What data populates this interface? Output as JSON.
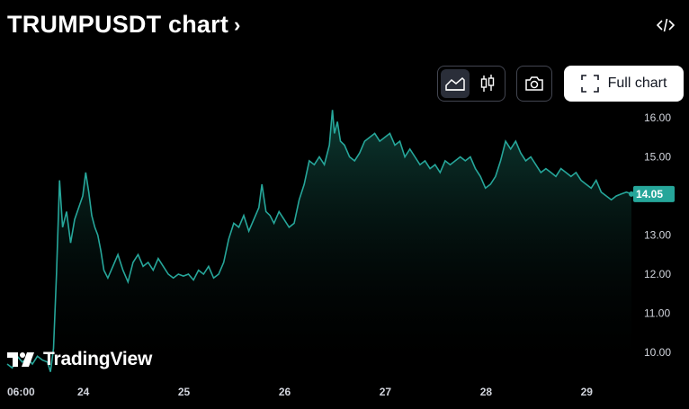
{
  "header": {
    "title": "TRUMPUSDT chart",
    "full_chart_label": "Full chart"
  },
  "icons": {
    "embed": "code-icon",
    "area": "area-chart-icon",
    "candles": "candlestick-icon",
    "snapshot": "camera-icon",
    "fullscreen": "fullscreen-icon"
  },
  "brand": {
    "name": "TradingView"
  },
  "colors": {
    "line": "#26a69a",
    "fill_top": "#0d3b33",
    "label_bg": "#26a69a",
    "background": "#000000"
  },
  "chart_data": {
    "type": "area",
    "title": "TRUMPUSDT chart",
    "xlabel": "",
    "ylabel": "",
    "x_ticks": [
      "06:00",
      "24",
      "25",
      "26",
      "27",
      "28",
      "29"
    ],
    "y_ticks": [
      "10.00",
      "11.00",
      "12.00",
      "13.00",
      "14.00",
      "15.00",
      "16.00"
    ],
    "ylim": [
      9.4,
      16.3
    ],
    "last_value": "14.05",
    "x_range_days": [
      23.25,
      29.45
    ],
    "series": [
      {
        "points": [
          [
            23.25,
            9.7
          ],
          [
            23.3,
            9.6
          ],
          [
            23.35,
            9.9
          ],
          [
            23.4,
            9.75
          ],
          [
            23.45,
            9.85
          ],
          [
            23.5,
            9.7
          ],
          [
            23.55,
            9.9
          ],
          [
            23.6,
            9.8
          ],
          [
            23.65,
            9.75
          ],
          [
            23.68,
            9.5
          ],
          [
            23.71,
            10.1
          ],
          [
            23.74,
            12.0
          ],
          [
            23.77,
            14.4
          ],
          [
            23.8,
            13.2
          ],
          [
            23.84,
            13.6
          ],
          [
            23.88,
            12.8
          ],
          [
            23.92,
            13.4
          ],
          [
            23.96,
            13.7
          ],
          [
            24.0,
            14.0
          ],
          [
            24.03,
            14.6
          ],
          [
            24.06,
            14.1
          ],
          [
            24.09,
            13.5
          ],
          [
            24.12,
            13.2
          ],
          [
            24.15,
            13.0
          ],
          [
            24.18,
            12.6
          ],
          [
            24.21,
            12.1
          ],
          [
            24.25,
            11.9
          ],
          [
            24.3,
            12.2
          ],
          [
            24.35,
            12.5
          ],
          [
            24.4,
            12.1
          ],
          [
            24.45,
            11.8
          ],
          [
            24.5,
            12.3
          ],
          [
            24.55,
            12.5
          ],
          [
            24.6,
            12.2
          ],
          [
            24.65,
            12.3
          ],
          [
            24.7,
            12.1
          ],
          [
            24.75,
            12.4
          ],
          [
            24.8,
            12.2
          ],
          [
            24.85,
            12.0
          ],
          [
            24.9,
            11.9
          ],
          [
            24.95,
            12.0
          ],
          [
            25.0,
            11.95
          ],
          [
            25.05,
            12.0
          ],
          [
            25.1,
            11.85
          ],
          [
            25.15,
            12.1
          ],
          [
            25.2,
            12.0
          ],
          [
            25.25,
            12.2
          ],
          [
            25.3,
            11.9
          ],
          [
            25.35,
            12.0
          ],
          [
            25.4,
            12.3
          ],
          [
            25.45,
            12.9
          ],
          [
            25.5,
            13.3
          ],
          [
            25.55,
            13.2
          ],
          [
            25.6,
            13.5
          ],
          [
            25.65,
            13.1
          ],
          [
            25.7,
            13.4
          ],
          [
            25.75,
            13.7
          ],
          [
            25.78,
            14.3
          ],
          [
            25.82,
            13.6
          ],
          [
            25.86,
            13.5
          ],
          [
            25.9,
            13.3
          ],
          [
            25.95,
            13.6
          ],
          [
            26.0,
            13.4
          ],
          [
            26.05,
            13.2
          ],
          [
            26.1,
            13.3
          ],
          [
            26.15,
            13.9
          ],
          [
            26.2,
            14.3
          ],
          [
            26.25,
            14.9
          ],
          [
            26.3,
            14.8
          ],
          [
            26.35,
            15.0
          ],
          [
            26.4,
            14.8
          ],
          [
            26.45,
            15.3
          ],
          [
            26.48,
            16.2
          ],
          [
            26.5,
            15.6
          ],
          [
            26.53,
            15.9
          ],
          [
            26.56,
            15.4
          ],
          [
            26.6,
            15.3
          ],
          [
            26.65,
            15.0
          ],
          [
            26.7,
            14.9
          ],
          [
            26.75,
            15.1
          ],
          [
            26.8,
            15.4
          ],
          [
            26.85,
            15.5
          ],
          [
            26.9,
            15.6
          ],
          [
            26.95,
            15.4
          ],
          [
            27.0,
            15.5
          ],
          [
            27.05,
            15.6
          ],
          [
            27.1,
            15.3
          ],
          [
            27.15,
            15.4
          ],
          [
            27.2,
            15.0
          ],
          [
            27.25,
            15.2
          ],
          [
            27.3,
            15.0
          ],
          [
            27.35,
            14.8
          ],
          [
            27.4,
            14.9
          ],
          [
            27.45,
            14.7
          ],
          [
            27.5,
            14.8
          ],
          [
            27.55,
            14.6
          ],
          [
            27.6,
            14.9
          ],
          [
            27.65,
            14.8
          ],
          [
            27.7,
            14.9
          ],
          [
            27.75,
            15.0
          ],
          [
            27.8,
            14.9
          ],
          [
            27.85,
            15.0
          ],
          [
            27.9,
            14.7
          ],
          [
            27.95,
            14.5
          ],
          [
            28.0,
            14.2
          ],
          [
            28.05,
            14.3
          ],
          [
            28.1,
            14.5
          ],
          [
            28.15,
            14.9
          ],
          [
            28.2,
            15.4
          ],
          [
            28.25,
            15.2
          ],
          [
            28.3,
            15.4
          ],
          [
            28.35,
            15.1
          ],
          [
            28.4,
            14.9
          ],
          [
            28.45,
            15.0
          ],
          [
            28.5,
            14.8
          ],
          [
            28.55,
            14.6
          ],
          [
            28.6,
            14.7
          ],
          [
            28.65,
            14.6
          ],
          [
            28.7,
            14.5
          ],
          [
            28.75,
            14.7
          ],
          [
            28.8,
            14.6
          ],
          [
            28.85,
            14.5
          ],
          [
            28.9,
            14.6
          ],
          [
            28.95,
            14.4
          ],
          [
            29.0,
            14.3
          ],
          [
            29.05,
            14.2
          ],
          [
            29.1,
            14.4
          ],
          [
            29.15,
            14.1
          ],
          [
            29.2,
            14.0
          ],
          [
            29.25,
            13.9
          ],
          [
            29.3,
            14.0
          ],
          [
            29.35,
            14.05
          ],
          [
            29.4,
            14.1
          ],
          [
            29.45,
            14.05
          ]
        ]
      }
    ]
  }
}
